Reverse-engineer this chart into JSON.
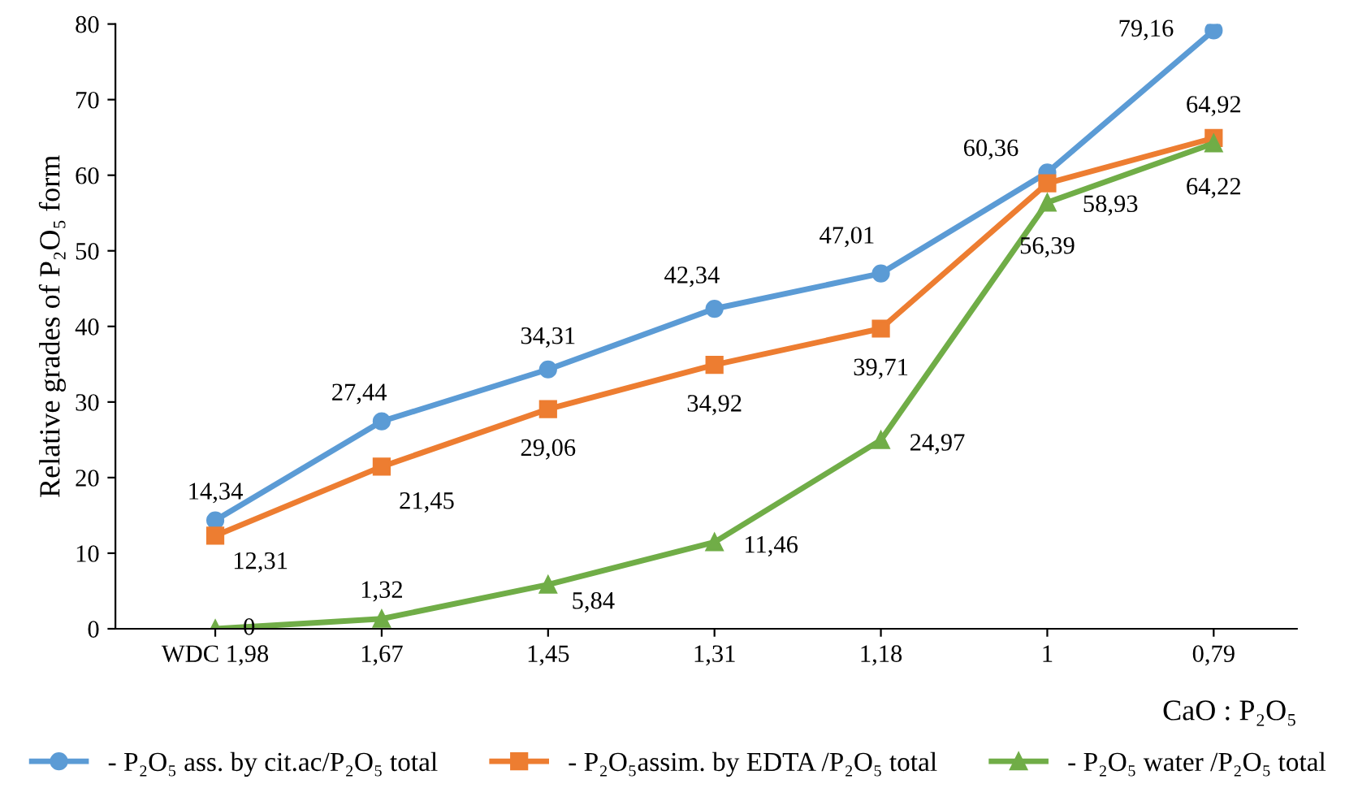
{
  "chart_data": {
    "type": "line",
    "ylabel": "Relative grades of P₂O₅ form",
    "xlabel": "CaO : P₂O₅",
    "categories": [
      "WDC 1,98",
      "1,67",
      "1,45",
      "1,31",
      "1,18",
      "1",
      "0,79"
    ],
    "series": [
      {
        "name": "- P₂O₅ ass. by cit.ac/P₂O₅ total",
        "color": "#5b9bd5",
        "marker": "circle",
        "values": [
          14.34,
          27.44,
          34.31,
          42.34,
          47.01,
          60.36,
          79.16
        ],
        "value_labels": [
          "14,34",
          "27,44",
          "34,31",
          "42,34",
          "47,01",
          "60,36",
          "79,16"
        ]
      },
      {
        "name": "- P₂O₅assim. by EDTA /P₂O₅ total",
        "color": "#ed7d31",
        "marker": "square",
        "values": [
          12.31,
          21.45,
          29.06,
          34.92,
          39.71,
          58.93,
          64.92
        ],
        "value_labels": [
          "12,31",
          "21,45",
          "29,06",
          "34,92",
          "39,71",
          "58,93",
          "64,92"
        ]
      },
      {
        "name": "- P₂O₅ water /P₂O₅ total",
        "color": "#70ad47",
        "marker": "triangle",
        "values": [
          0,
          1.32,
          5.84,
          11.46,
          24.97,
          56.39,
          64.22
        ],
        "value_labels": [
          "0",
          "1,32",
          "5,84",
          "11,46",
          "24,97",
          "56,39",
          "64,22"
        ]
      }
    ],
    "ylim": [
      0,
      80
    ],
    "yticks": [
      0,
      10,
      20,
      30,
      40,
      50,
      60,
      70,
      80
    ],
    "grid": false,
    "legend": "bottom",
    "line_style": "solid"
  }
}
